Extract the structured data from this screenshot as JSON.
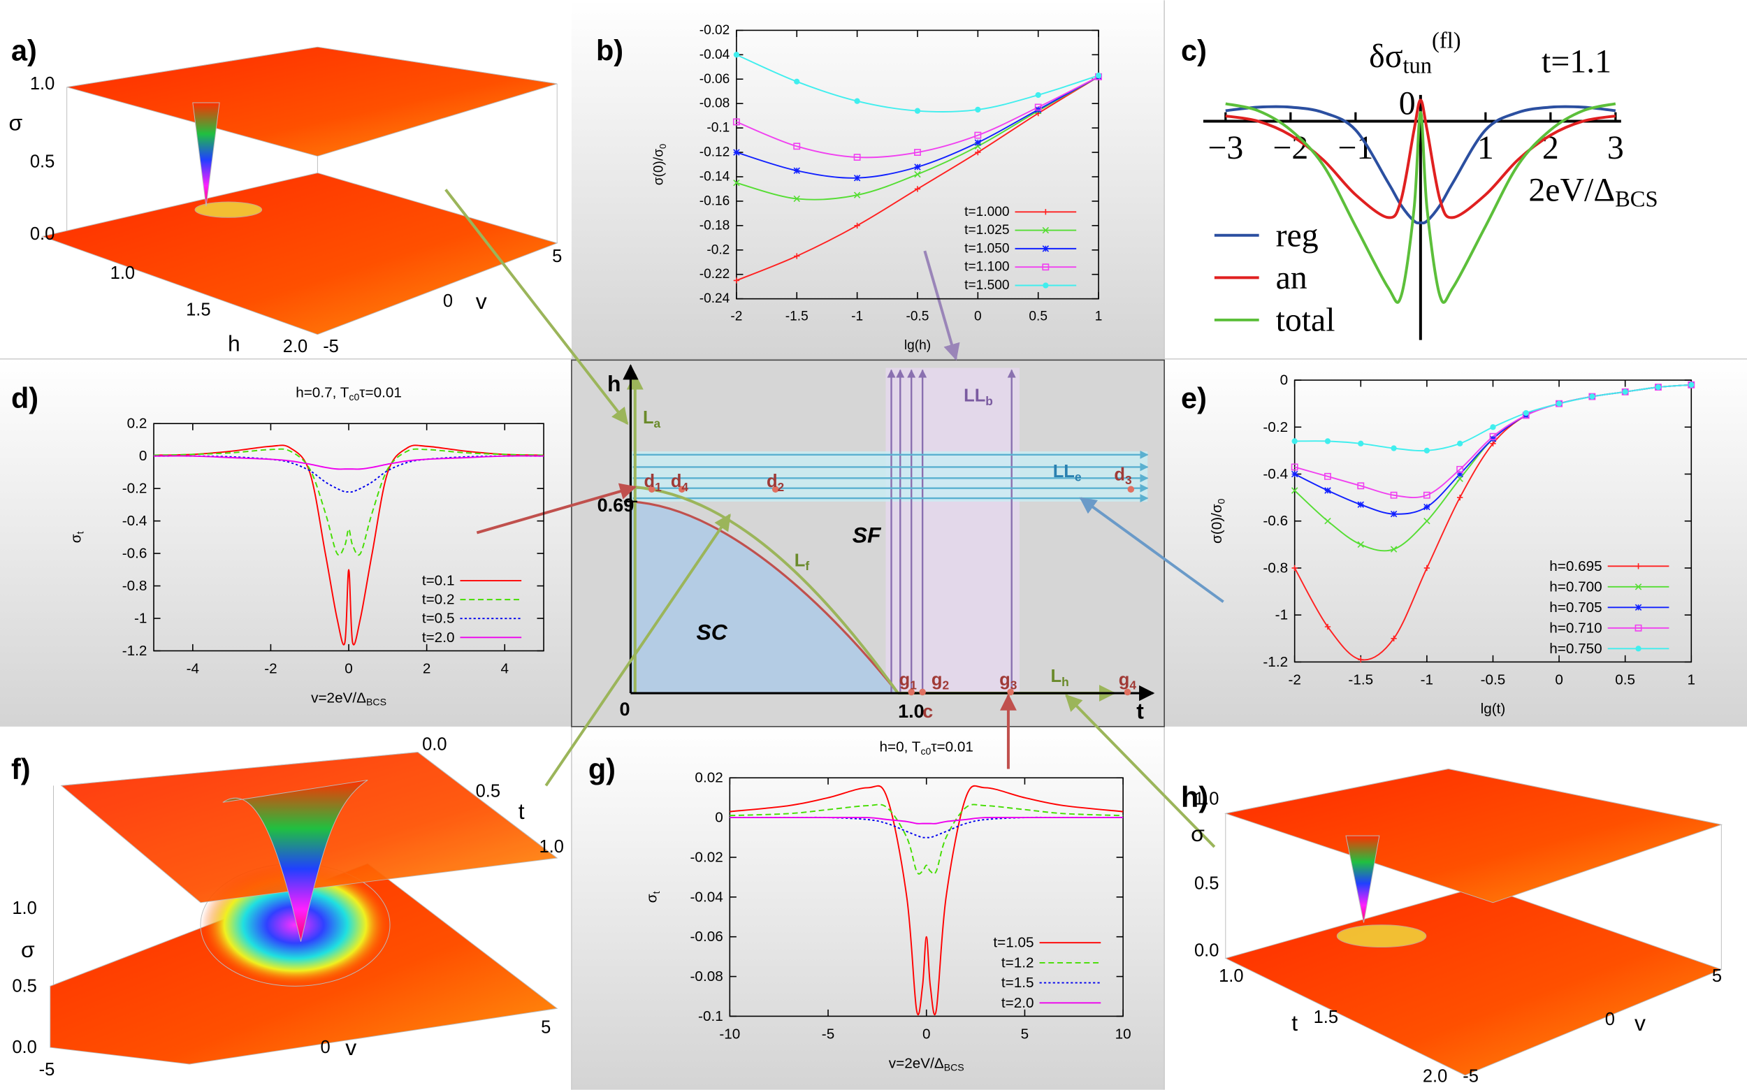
{
  "panel_labels": [
    "a)",
    "b)",
    "c)",
    "d)",
    "e)",
    "f)",
    "g)",
    "h)"
  ],
  "chart_data": [
    {
      "type": "line",
      "xlabel": "lg(h)",
      "ylabel": [
        {
          "t": "σ(0)/σ"
        },
        {
          "t": "0",
          "s": "sub"
        }
      ],
      "x": [
        -2,
        -1.5,
        -1,
        -0.5,
        0,
        0.5,
        1
      ],
      "xlim": [
        -2,
        1
      ],
      "ylim": [
        -0.24,
        -0.02
      ],
      "xticks": [
        -2,
        -1.5,
        -1,
        -0.5,
        0,
        0.5,
        1
      ],
      "yticks": [
        -0.24,
        -0.22,
        -0.2,
        -0.18,
        -0.16,
        -0.14,
        -0.12,
        -0.1,
        -0.08,
        -0.06,
        -0.04,
        -0.02
      ],
      "legend": "lower right",
      "series": [
        {
          "name": "t=1.000",
          "color": "#ff2020",
          "marker": "plus",
          "values": [
            -0.225,
            -0.205,
            -0.18,
            -0.15,
            -0.12,
            -0.088,
            -0.058
          ]
        },
        {
          "name": "t=1.025",
          "color": "#55dd33",
          "marker": "cross",
          "values": [
            -0.145,
            -0.158,
            -0.155,
            -0.138,
            -0.115,
            -0.086,
            -0.058
          ]
        },
        {
          "name": "t=1.050",
          "color": "#1020ff",
          "marker": "star",
          "values": [
            -0.12,
            -0.135,
            -0.141,
            -0.132,
            -0.112,
            -0.085,
            -0.058
          ]
        },
        {
          "name": "t=1.100",
          "color": "#f040f0",
          "marker": "square",
          "values": [
            -0.095,
            -0.115,
            -0.124,
            -0.12,
            -0.106,
            -0.083,
            -0.058
          ]
        },
        {
          "name": "t=1.500",
          "color": "#40eeee",
          "marker": "circle",
          "values": [
            -0.04,
            -0.062,
            -0.078,
            -0.086,
            -0.085,
            -0.073,
            -0.057
          ]
        }
      ]
    },
    {
      "type": "line",
      "axes": "cross",
      "title": [
        {
          "t": "δσ"
        },
        {
          "t": "tun",
          "s": "sub"
        },
        {
          "t": "(fl)",
          "s": "sup"
        }
      ],
      "annotation": "t=1.1",
      "xlabel": [
        {
          "t": "2eV/Δ"
        },
        {
          "t": "BCS",
          "s": "sub"
        }
      ],
      "x": [
        -3,
        -2.5,
        -2,
        -1.5,
        -1,
        -0.5,
        -0.3,
        -0.1,
        0,
        0.1,
        0.3,
        0.5,
        1,
        1.5,
        2,
        2.5,
        3
      ],
      "xlim": [
        -3,
        3
      ],
      "ylim": [
        -1.25,
        0.15
      ],
      "xticks": [
        {
          "value": -3,
          "label": "−3"
        },
        {
          "value": -2,
          "label": "−2"
        },
        {
          "value": -1,
          "label": "−1"
        },
        0,
        1,
        2,
        3
      ],
      "legend": "lower left",
      "series": [
        {
          "name": "reg",
          "color": "#2b4fa0",
          "values": [
            0.06,
            0.08,
            0.08,
            0.05,
            -0.05,
            -0.35,
            -0.48,
            -0.57,
            -0.58,
            -0.57,
            -0.48,
            -0.35,
            -0.05,
            0.05,
            0.08,
            0.08,
            0.06
          ]
        },
        {
          "name": "an",
          "color": "#e02020",
          "values": [
            0.03,
            0,
            -0.08,
            -0.22,
            -0.42,
            -0.55,
            -0.45,
            -0.05,
            0.12,
            -0.05,
            -0.45,
            -0.55,
            -0.42,
            -0.22,
            -0.08,
            0,
            0.03
          ]
        },
        {
          "name": "total",
          "color": "#5cbf3a",
          "values": [
            0.1,
            0.06,
            -0.05,
            -0.25,
            -0.6,
            -0.95,
            -1.0,
            -0.5,
            0.05,
            -0.5,
            -1.0,
            -0.95,
            -0.6,
            -0.25,
            -0.05,
            0.06,
            0.1
          ]
        }
      ]
    },
    {
      "type": "line",
      "title": [
        {
          "t": "h=0.7, T"
        },
        {
          "t": "c0",
          "s": "sub"
        },
        {
          "t": "τ=0.01"
        }
      ],
      "xlabel": [
        {
          "t": "v=2eV/Δ"
        },
        {
          "t": "BCS",
          "s": "sub"
        }
      ],
      "ylabel": [
        {
          "t": "σ"
        },
        {
          "t": "t",
          "s": "sub"
        }
      ],
      "x": [
        -5,
        -4,
        -3,
        -2,
        -1.5,
        -1,
        -0.6,
        -0.3,
        -0.1,
        0,
        0.1,
        0.3,
        0.6,
        1,
        1.5,
        2,
        3,
        4,
        5
      ],
      "xlim": [
        -5,
        5
      ],
      "ylim": [
        -1.2,
        0.2
      ],
      "xticks": [
        -4,
        -2,
        0,
        2,
        4
      ],
      "yticks": [
        0.2,
        0,
        -0.2,
        -0.4,
        -0.6,
        -0.8,
        -1,
        -1.2
      ],
      "legend": "lower right",
      "series": [
        {
          "name": "t=0.1",
          "color": "#ff0000",
          "values": [
            0.005,
            0.01,
            0.03,
            0.06,
            0.05,
            -0.1,
            -0.6,
            -1.0,
            -1.15,
            -0.7,
            -1.15,
            -1.0,
            -0.6,
            -0.1,
            0.05,
            0.06,
            0.03,
            0.01,
            0.005
          ]
        },
        {
          "name": "t=0.2",
          "color": "#44dd00",
          "dash": "dashed",
          "values": [
            0.005,
            0.01,
            0.02,
            0.04,
            0.03,
            -0.08,
            -0.35,
            -0.6,
            -0.55,
            -0.45,
            -0.55,
            -0.6,
            -0.35,
            -0.08,
            0.03,
            0.04,
            0.02,
            0.01,
            0.005
          ]
        },
        {
          "name": "t=0.5",
          "color": "#0000ee",
          "dash": "dotted",
          "values": [
            0,
            0,
            -0.005,
            -0.02,
            -0.04,
            -0.09,
            -0.16,
            -0.2,
            -0.22,
            -0.22,
            -0.22,
            -0.2,
            -0.16,
            -0.09,
            -0.04,
            -0.02,
            -0.005,
            0,
            0
          ]
        },
        {
          "name": "t=2.0",
          "color": "#ee00ee",
          "values": [
            0,
            0,
            -0.01,
            -0.02,
            -0.03,
            -0.05,
            -0.07,
            -0.08,
            -0.08,
            -0.08,
            -0.08,
            -0.08,
            -0.07,
            -0.05,
            -0.03,
            -0.02,
            -0.01,
            0,
            0
          ]
        }
      ]
    },
    {
      "type": "line",
      "xlabel": "lg(t)",
      "ylabel": [
        {
          "t": "σ(0)/σ"
        },
        {
          "t": "0",
          "s": "sub"
        }
      ],
      "x": [
        -2,
        -1.75,
        -1.5,
        -1.25,
        -1,
        -0.75,
        -0.5,
        -0.25,
        0,
        0.25,
        0.5,
        0.75,
        1
      ],
      "xlim": [
        -2,
        1
      ],
      "ylim": [
        -1.2,
        0
      ],
      "xticks": [
        -2,
        -1.5,
        -1,
        -0.5,
        0,
        0.5,
        1
      ],
      "yticks": [
        0,
        -0.2,
        -0.4,
        -0.6,
        -0.8,
        -1,
        -1.2
      ],
      "legend": "lower right",
      "series": [
        {
          "name": "h=0.695",
          "color": "#ff2020",
          "marker": "plus",
          "values": [
            -0.8,
            -1.05,
            -1.19,
            -1.1,
            -0.8,
            -0.5,
            -0.27,
            -0.15,
            -0.1,
            -0.07,
            -0.05,
            -0.03,
            -0.02
          ]
        },
        {
          "name": "h=0.700",
          "color": "#55dd33",
          "marker": "cross",
          "values": [
            -0.47,
            -0.6,
            -0.7,
            -0.72,
            -0.6,
            -0.42,
            -0.25,
            -0.15,
            -0.1,
            -0.07,
            -0.05,
            -0.03,
            -0.02
          ]
        },
        {
          "name": "h=0.705",
          "color": "#1020ff",
          "marker": "star",
          "values": [
            -0.4,
            -0.47,
            -0.53,
            -0.57,
            -0.54,
            -0.4,
            -0.25,
            -0.15,
            -0.1,
            -0.07,
            -0.05,
            -0.03,
            -0.02
          ]
        },
        {
          "name": "h=0.710",
          "color": "#f040f0",
          "marker": "square",
          "values": [
            -0.37,
            -0.41,
            -0.45,
            -0.49,
            -0.49,
            -0.38,
            -0.24,
            -0.15,
            -0.1,
            -0.07,
            -0.05,
            -0.03,
            -0.02
          ]
        },
        {
          "name": "h=0.750",
          "color": "#40eeee",
          "marker": "circle",
          "values": [
            -0.26,
            -0.26,
            -0.27,
            -0.29,
            -0.3,
            -0.27,
            -0.2,
            -0.14,
            -0.1,
            -0.07,
            -0.05,
            -0.03,
            -0.02
          ]
        }
      ]
    },
    {
      "type": "line",
      "title": [
        {
          "t": "h=0, T"
        },
        {
          "t": "c0",
          "s": "sub"
        },
        {
          "t": "τ=0.01"
        }
      ],
      "xlabel": [
        {
          "t": "v=2eV/Δ"
        },
        {
          "t": "BCS",
          "s": "sub"
        }
      ],
      "ylabel": [
        {
          "t": "σ"
        },
        {
          "t": "t",
          "s": "sub"
        }
      ],
      "x": [
        -10,
        -7,
        -5,
        -3,
        -2,
        -1,
        -0.5,
        -0.2,
        0,
        0.2,
        0.5,
        1,
        2,
        3,
        5,
        7,
        10
      ],
      "xlim": [
        -10,
        10
      ],
      "ylim": [
        -0.1,
        0.02
      ],
      "xticks": [
        -10,
        -5,
        0,
        5,
        10
      ],
      "yticks": [
        0.02,
        0,
        -0.02,
        -0.04,
        -0.06,
        -0.08,
        -0.1
      ],
      "legend": "lower right",
      "series": [
        {
          "name": "t=1.05",
          "color": "#ff0000",
          "values": [
            0.003,
            0.006,
            0.01,
            0.015,
            0.01,
            -0.04,
            -0.097,
            -0.085,
            -0.06,
            -0.085,
            -0.097,
            -0.04,
            0.01,
            0.015,
            0.01,
            0.006,
            0.003
          ]
        },
        {
          "name": "t=1.2",
          "color": "#44dd00",
          "dash": "dashed",
          "values": [
            0.001,
            0.002,
            0.004,
            0.006,
            0.005,
            -0.01,
            -0.027,
            -0.027,
            -0.024,
            -0.027,
            -0.027,
            -0.01,
            0.005,
            0.006,
            0.004,
            0.002,
            0.001
          ]
        },
        {
          "name": "t=1.5",
          "color": "#0000ee",
          "dash": "dotted",
          "values": [
            0,
            0,
            0,
            -0.001,
            -0.003,
            -0.007,
            -0.009,
            -0.01,
            -0.01,
            -0.01,
            -0.009,
            -0.007,
            -0.003,
            -0.001,
            0,
            0,
            0
          ]
        },
        {
          "name": "t=2.0",
          "color": "#ee00ee",
          "values": [
            0,
            0,
            0,
            0,
            -0.001,
            -0.002,
            -0.003,
            -0.003,
            -0.003,
            -0.003,
            -0.003,
            -0.002,
            -0.001,
            0,
            0,
            0,
            0
          ]
        }
      ]
    }
  ],
  "diagram": {
    "labels": [
      "h",
      "t",
      "0",
      "0.69",
      "1.0",
      "c",
      [
        {
          "t": "L"
        },
        {
          "t": "a",
          "s": "sub"
        }
      ],
      [
        {
          "t": "L"
        },
        {
          "t": "f",
          "s": "sub"
        }
      ],
      [
        {
          "t": "L"
        },
        {
          "t": "h",
          "s": "sub"
        }
      ],
      [
        {
          "t": "LL"
        },
        {
          "t": "b",
          "s": "sub"
        }
      ],
      [
        {
          "t": "LL"
        },
        {
          "t": "e",
          "s": "sub"
        }
      ],
      "SF",
      "SC",
      [
        {
          "t": "d"
        },
        {
          "t": "1",
          "s": "sub"
        }
      ],
      [
        {
          "t": "d"
        },
        {
          "t": "4",
          "s": "sub"
        }
      ],
      [
        {
          "t": "d"
        },
        {
          "t": "2",
          "s": "sub"
        }
      ],
      [
        {
          "t": "d"
        },
        {
          "t": "3",
          "s": "sub"
        }
      ],
      [
        {
          "t": "g"
        },
        {
          "t": "1",
          "s": "sub"
        }
      ],
      [
        {
          "t": "g"
        },
        {
          "t": "2",
          "s": "sub"
        }
      ],
      [
        {
          "t": "g"
        },
        {
          "t": "3",
          "s": "sub"
        }
      ],
      [
        {
          "t": "g"
        },
        {
          "t": "4",
          "s": "sub"
        }
      ]
    ]
  },
  "surfaces": [
    {
      "sigma_label": "σ",
      "sigma_ticks": [
        "1.0",
        "0.5",
        "0.0"
      ],
      "axis1_label": "h",
      "axis1_ticks": [
        "1.0",
        "1.5",
        "2.0"
      ],
      "axis2_label": "v",
      "axis2_ticks": [
        "5",
        "0",
        "-5"
      ]
    },
    {
      "sigma_label": "σ",
      "sigma_ticks": [
        "1.0",
        "0.5",
        "0.0"
      ],
      "axis1_label": "t",
      "axis1_ticks": [
        "0.0",
        "0.5",
        "1.0"
      ],
      "axis2_label": "v",
      "axis2_ticks": [
        "-5",
        "0",
        "5"
      ]
    },
    {
      "sigma_label": "σ",
      "sigma_ticks": [
        "1.0",
        "0.5",
        "0.0"
      ],
      "axis1_label": "t",
      "axis1_ticks": [
        "1.0",
        "1.5",
        "2.0"
      ],
      "axis2_label": "v",
      "axis2_ticks": [
        "5",
        "0",
        "-5"
      ]
    }
  ]
}
